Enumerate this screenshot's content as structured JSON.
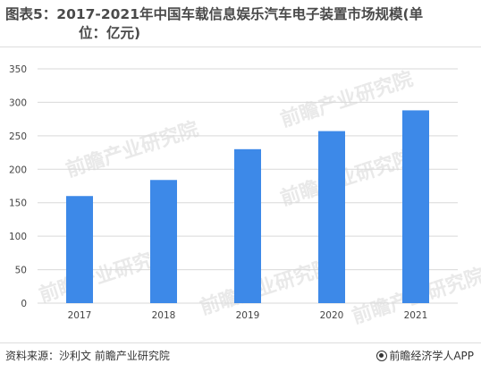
{
  "header": {
    "title_line1": "图表5：2017-2021年中国车载信息娱乐汽车电子装置市场规模(单",
    "title_line2": "位：亿元)"
  },
  "chart_data": {
    "type": "bar",
    "categories": [
      "2017",
      "2018",
      "2019",
      "2020",
      "2021"
    ],
    "values": [
      160,
      184,
      230,
      257,
      288
    ],
    "ylim": [
      0,
      350
    ],
    "yticks": [
      "0",
      "50",
      "100",
      "150",
      "200",
      "250",
      "300",
      "350"
    ],
    "ytick_values": [
      0,
      50,
      100,
      150,
      200,
      250,
      300,
      350
    ],
    "bar_color": "#3d89e8",
    "grid": true,
    "grid_color": "#d9d9d9",
    "legend": "none"
  },
  "footer": {
    "source": "资料来源：沙利文 前瞻产业研究院",
    "brand": "前瞻经济学人APP"
  },
  "watermark": {
    "text": "前瞻产业研究院",
    "color": "#e9e9e9"
  }
}
